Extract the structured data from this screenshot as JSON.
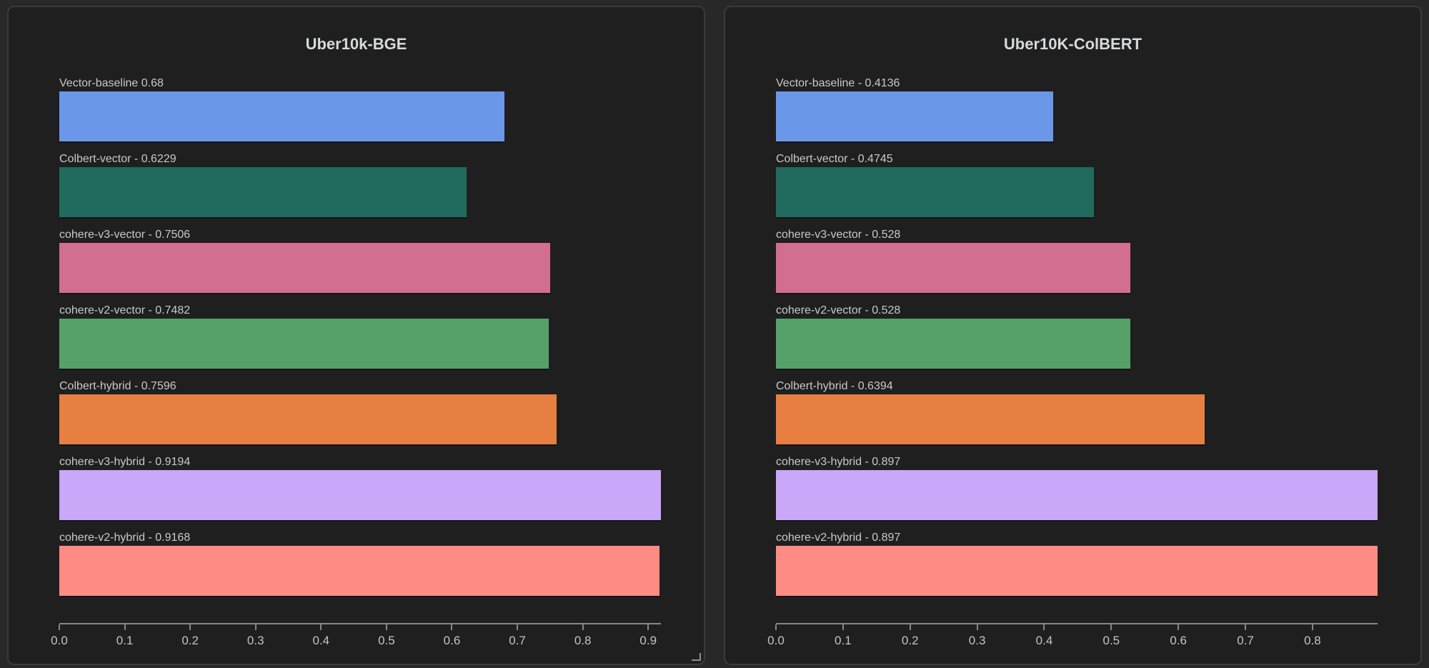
{
  "app": {
    "background_color": "#282828",
    "panel_background_color": "#1f1f1f",
    "panel_border_color": "#3a3a3a",
    "axis_color": "#878787",
    "label_text_color": "#c9c9c9",
    "title_text_color": "#d7d9dc"
  },
  "chart_data": [
    {
      "type": "bar",
      "orientation": "horizontal",
      "title": "Uber10k-BGE",
      "xlabel": "",
      "ylabel": "",
      "xlim": [
        0,
        0.9194
      ],
      "grid": false,
      "legend": false,
      "x_tick_labels": [
        "0.0",
        "0.1",
        "0.2",
        "0.3",
        "0.4",
        "0.5",
        "0.6",
        "0.7",
        "0.8",
        "0.9"
      ],
      "series": [
        {
          "name": "Vector-baseline",
          "value": 0.68,
          "display_label": "Vector-baseline 0.68",
          "color": "#6a97e8"
        },
        {
          "name": "Colbert-vector",
          "value": 0.6229,
          "display_label": "Colbert-vector - 0.6229",
          "color": "#206b5e"
        },
        {
          "name": "cohere-v3-vector",
          "value": 0.7506,
          "display_label": "cohere-v3-vector - 0.7506",
          "color": "#d26e90"
        },
        {
          "name": "cohere-v2-vector",
          "value": 0.7482,
          "display_label": "cohere-v2-vector - 0.7482",
          "color": "#55a169"
        },
        {
          "name": "Colbert-hybrid",
          "value": 0.7596,
          "display_label": "Colbert-hybrid - 0.7596",
          "color": "#e67f41"
        },
        {
          "name": "cohere-v3-hybrid",
          "value": 0.9194,
          "display_label": "cohere-v3-hybrid - 0.9194",
          "color": "#c9a7f9"
        },
        {
          "name": "cohere-v2-hybrid",
          "value": 0.9168,
          "display_label": "cohere-v2-hybrid - 0.9168",
          "color": "#fe8c85"
        }
      ]
    },
    {
      "type": "bar",
      "orientation": "horizontal",
      "title": "Uber10K-ColBERT",
      "xlabel": "",
      "ylabel": "",
      "xlim": [
        0,
        0.897
      ],
      "grid": false,
      "legend": false,
      "x_tick_labels": [
        "0.0",
        "0.1",
        "0.2",
        "0.3",
        "0.4",
        "0.5",
        "0.6",
        "0.7",
        "0.8"
      ],
      "series": [
        {
          "name": "Vector-baseline",
          "value": 0.4136,
          "display_label": "Vector-baseline - 0.4136",
          "color": "#6a97e8"
        },
        {
          "name": "Colbert-vector",
          "value": 0.4745,
          "display_label": "Colbert-vector - 0.4745",
          "color": "#206b5e"
        },
        {
          "name": "cohere-v3-vector",
          "value": 0.528,
          "display_label": "cohere-v3-vector - 0.528",
          "color": "#d26e90"
        },
        {
          "name": "cohere-v2-vector",
          "value": 0.528,
          "display_label": "cohere-v2-vector - 0.528",
          "color": "#55a169"
        },
        {
          "name": "Colbert-hybrid",
          "value": 0.6394,
          "display_label": "Colbert-hybrid - 0.6394",
          "color": "#e67f41"
        },
        {
          "name": "cohere-v3-hybrid",
          "value": 0.897,
          "display_label": "cohere-v3-hybrid - 0.897",
          "color": "#c9a7f9"
        },
        {
          "name": "cohere-v2-hybrid",
          "value": 0.897,
          "display_label": "cohere-v2-hybrid - 0.897",
          "color": "#fe8c85"
        }
      ]
    }
  ]
}
